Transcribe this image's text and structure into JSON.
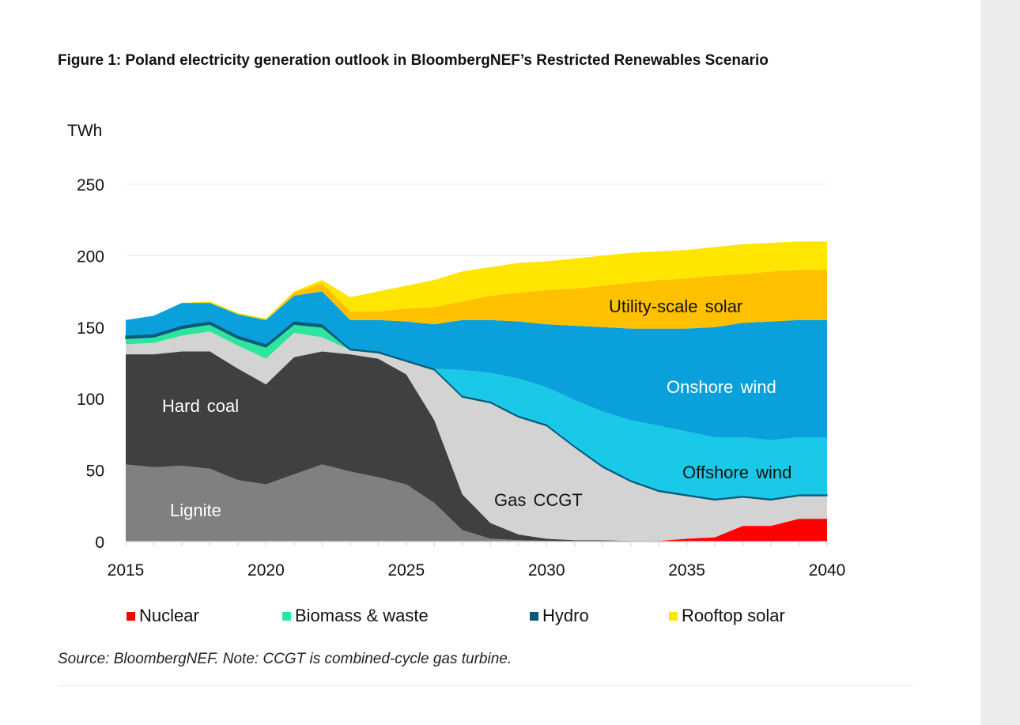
{
  "title": "Figure 1: Poland electricity generation outlook in BloombergNEF’s Restricted Renewables Scenario",
  "source": "Source: BloombergNEF. Note: CCGT is combined-cycle gas turbine.",
  "chart_data": {
    "type": "area",
    "stacked": true,
    "title": "Figure 1: Poland electricity generation outlook in BloombergNEF’s Restricted Renewables Scenario",
    "ylabel": "TWh",
    "xlabel": "",
    "ylim": [
      0,
      250
    ],
    "yticks": [
      "0",
      "50",
      "100",
      "150",
      "200",
      "250"
    ],
    "xticks": [
      "2015",
      "2020",
      "2025",
      "2030",
      "2035",
      "2040"
    ],
    "grid": true,
    "x": [
      2015,
      2016,
      2017,
      2018,
      2019,
      2020,
      2021,
      2022,
      2023,
      2024,
      2025,
      2026,
      2027,
      2028,
      2029,
      2030,
      2031,
      2032,
      2033,
      2034,
      2035,
      2036,
      2037,
      2038,
      2039,
      2040
    ],
    "series": [
      {
        "name": "Nuclear",
        "color": "#ff0000",
        "legend": true,
        "values": [
          0,
          0,
          0,
          0,
          0,
          0,
          0,
          0,
          0,
          0,
          0,
          0,
          0,
          0,
          0,
          0,
          0,
          0,
          0,
          0.5,
          2,
          3,
          11,
          11,
          16,
          16
        ]
      },
      {
        "name": "Lignite",
        "color": "#808080",
        "label": "Lignite",
        "label_color": "#ffffff",
        "values": [
          54,
          52,
          53,
          51,
          43,
          40,
          47,
          54,
          49,
          45,
          40,
          27,
          8,
          2,
          1,
          0.5,
          0,
          0,
          0,
          0,
          0,
          0,
          0,
          0,
          0,
          0
        ]
      },
      {
        "name": "Hard coal",
        "color": "#404040",
        "label": "Hard coal",
        "label_color": "#ffffff",
        "values": [
          77,
          79,
          80,
          82,
          78,
          70,
          82,
          79,
          82,
          83,
          77,
          58,
          25,
          11,
          4,
          1.5,
          1,
          1,
          0.5,
          0,
          0,
          0,
          0,
          0,
          0,
          0
        ]
      },
      {
        "name": "Gas CCGT",
        "color": "#d3d3d3",
        "label": "Gas CCGT",
        "label_color": "#111111",
        "values": [
          7,
          8,
          11,
          14,
          16,
          18,
          17,
          10,
          3,
          4,
          9,
          35,
          68,
          84,
          82,
          79,
          65,
          51,
          41.5,
          34.5,
          30,
          26,
          20,
          18,
          16,
          16
        ]
      },
      {
        "name": "Biomass & waste",
        "color": "#2ee59d",
        "legend": true,
        "values": [
          4,
          4,
          5,
          5,
          5,
          8,
          6,
          7,
          0,
          0,
          0,
          0,
          0,
          0,
          0,
          0,
          0,
          0,
          0,
          0,
          0,
          0,
          0,
          0,
          0,
          0
        ]
      },
      {
        "name": "Hydro",
        "color": "#0b5a7a",
        "legend": true,
        "values": [
          2,
          2,
          2,
          2,
          2,
          2,
          2,
          2,
          1,
          1,
          1,
          1,
          1,
          1,
          1,
          1,
          1,
          1,
          1,
          1,
          1,
          1,
          1,
          1,
          1,
          1
        ]
      },
      {
        "name": "Offshore wind",
        "color": "#1ac8e8",
        "label": "Offshore wind",
        "label_color": "#111111",
        "values": [
          0,
          0,
          0,
          0,
          0,
          0,
          0,
          0,
          0,
          0,
          0,
          0,
          18,
          20,
          26,
          26,
          32,
          38,
          42,
          45,
          44,
          43,
          41,
          41,
          40,
          40
        ]
      },
      {
        "name": "Onshore wind",
        "color": "#0aa0dc",
        "label": "Onshore wind",
        "label_color": "#ffffff",
        "values": [
          11,
          13,
          16,
          13,
          15,
          17,
          18,
          23,
          20,
          22,
          27,
          31,
          35,
          37,
          40,
          44,
          52,
          59,
          64,
          68,
          72,
          77,
          80,
          83,
          82,
          82
        ]
      },
      {
        "name": "Utility-scale solar",
        "color": "#ffc000",
        "label": "Utility-scale solar",
        "label_color": "#111111",
        "values": [
          0,
          0,
          0,
          0,
          0,
          0,
          2,
          6,
          6,
          6,
          9,
          12,
          13,
          17,
          20,
          24,
          26,
          29,
          32,
          34,
          35,
          36,
          34,
          35,
          35,
          35
        ]
      },
      {
        "name": "Rooftop solar",
        "color": "#ffe600",
        "legend": true,
        "values": [
          0,
          0,
          0,
          1,
          1,
          1,
          1,
          2,
          10,
          14,
          16,
          19,
          21,
          20,
          21,
          20,
          21,
          21,
          21,
          20,
          20,
          20,
          21,
          20,
          20,
          20
        ]
      }
    ],
    "legend": [
      "Nuclear",
      "Biomass & waste",
      "Hydro",
      "Rooftop solar"
    ],
    "legend_position": "bottom"
  }
}
